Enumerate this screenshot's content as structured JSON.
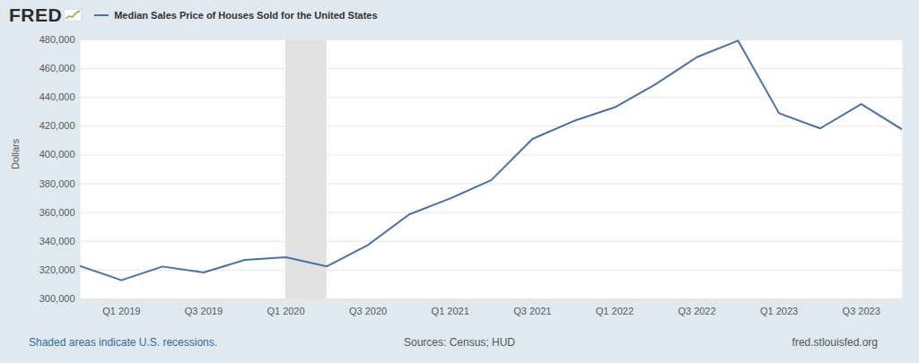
{
  "logo": "FRED",
  "note": "Shaded areas indicate U.S. recessions.",
  "source": "Sources: Census; HUD",
  "url": "fred.stlouisfed.org",
  "chart_data": {
    "type": "line",
    "y_label": "Dollars",
    "legend": "top-left",
    "grid": true,
    "categories": [
      null,
      "Q1 2019",
      null,
      "Q3 2019",
      null,
      "Q1 2020",
      null,
      "Q3 2020",
      null,
      "Q1 2021",
      null,
      "Q3 2021",
      null,
      "Q1 2022",
      null,
      "Q3 2022",
      null,
      "Q1 2023",
      null,
      "Q3 2023",
      null
    ],
    "series": [
      {
        "name": "Median Sales Price of Houses Sold for the United States",
        "color": "#4572a7",
        "values": [
          322800,
          313000,
          322500,
          318400,
          327100,
          329000,
          322600,
          337500,
          358700,
          369800,
          382600,
          411200,
          423600,
          433100,
          449300,
          468000,
          479500,
          429000,
          418500,
          435400,
          417700
        ]
      }
    ],
    "recessions": [
      {
        "start": 5,
        "end": 6
      }
    ],
    "ylim": [
      300000,
      480000
    ],
    "yticks": [
      {
        "value": 300000,
        "label": "300,000"
      },
      {
        "value": 320000,
        "label": "320,000"
      },
      {
        "value": 340000,
        "label": "340,000"
      },
      {
        "value": 360000,
        "label": "360,000"
      },
      {
        "value": 380000,
        "label": "380,000"
      },
      {
        "value": 400000,
        "label": "400,000"
      },
      {
        "value": 420000,
        "label": "420,000"
      },
      {
        "value": 440000,
        "label": "440,000"
      },
      {
        "value": 460000,
        "label": "460,000"
      },
      {
        "value": 480000,
        "label": "480,000"
      }
    ]
  }
}
